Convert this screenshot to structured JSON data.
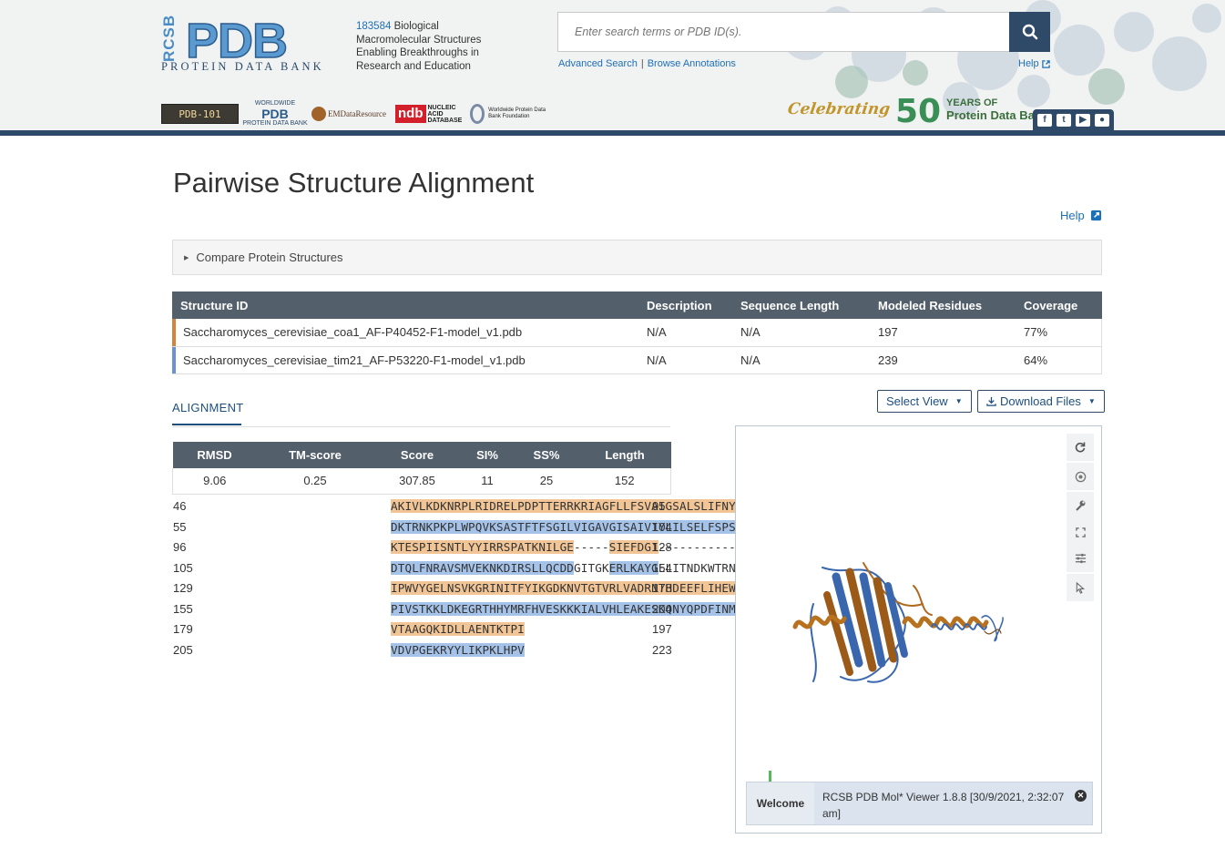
{
  "header": {
    "logo_side": "RCSB",
    "logo_main": "PDB",
    "logo_sub": "PROTEIN DATA BANK",
    "entry_count": "183584",
    "tagline": "Biological Macromolecular Structures Enabling Breakthroughs in Research and Education",
    "search_placeholder": "Enter search terms or PDB ID(s).",
    "advanced_search": "Advanced Search",
    "browse_annotations": "Browse Annotations",
    "help": "Help",
    "partners": {
      "pdb101": "PDB-101",
      "wwpdb_top": "WORLDWIDE",
      "wwpdb_main": "PDB",
      "wwpdb_bottom": "PROTEIN DATA BANK",
      "emdr": "EMDataResource",
      "ndb_letters": "ndb",
      "ndb_text": "NUCLEIC ACID DATABASE",
      "wwpdbf": "Worldwide Protein Data Bank Foundation"
    },
    "celebrate": {
      "word": "Celebrating",
      "number": "50",
      "years": "YEARS OF",
      "bank": "Protein Data Bank"
    }
  },
  "page": {
    "title": "Pairwise Structure Alignment",
    "help": "Help",
    "compare_panel": "Compare Protein Structures"
  },
  "structures": {
    "headers": [
      "Structure ID",
      "Description",
      "Sequence Length",
      "Modeled Residues",
      "Coverage"
    ],
    "rows": [
      {
        "id": "Saccharomyces_cerevisiae_coa1_AF-P40452-F1-model_v1.pdb",
        "description": "N/A",
        "sequence_length": "N/A",
        "modeled_residues": "197",
        "coverage": "77%",
        "color": "#d1843f"
      },
      {
        "id": "Saccharomyces_cerevisiae_tim21_AF-P53220-F1-model_v1.pdb",
        "description": "N/A",
        "sequence_length": "N/A",
        "modeled_residues": "239",
        "coverage": "64%",
        "color": "#6b93d1"
      }
    ]
  },
  "alignment": {
    "tab": "ALIGNMENT",
    "stats_headers": [
      "RMSD",
      "TM-score",
      "Score",
      "SI%",
      "SS%",
      "Length"
    ],
    "stats_values": [
      "9.06",
      "0.25",
      "307.85",
      "11",
      "25",
      "152"
    ],
    "rows": [
      {
        "start": "46",
        "end": "95",
        "segments": [
          {
            "t": "AKIVLKDKNRPLRIDRELPDPTTERRKRIAGFLLFSVAIGSALSLIFNYE",
            "c": "or"
          }
        ]
      },
      {
        "start": "55",
        "end": "104",
        "segments": [
          {
            "t": "DKTRNKPKPLWPQVKSASTFTFSGILVIGAVGISAIVIYLILSELFSPSG",
            "c": "bl"
          }
        ]
      },
      {
        "start": "96",
        "end": "128",
        "segments": [
          {
            "t": "KTESPIISNTLYYIRRSPATKNILGE",
            "c": "or"
          },
          {
            "t": "-----",
            "c": ""
          },
          {
            "t": "SIEFDGI",
            "c": "or"
          },
          {
            "t": "------------",
            "c": ""
          }
        ]
      },
      {
        "start": "105",
        "end": "154",
        "segments": [
          {
            "t": "DTQLFNRAVSMVEKNKDIRSLLQCDD",
            "c": "bl"
          },
          {
            "t": "GITGK",
            "c": ""
          },
          {
            "t": "ERLKAYG",
            "c": "bl"
          },
          {
            "t": "ELITNDKWTRNR",
            "c": ""
          }
        ]
      },
      {
        "start": "129",
        "end": "178",
        "segments": [
          {
            "t": "IPWVYGELNSVKGRINITFYIKGDKNVTGTVRLVADRNTHDEEFLIHEWS",
            "c": "or"
          }
        ]
      },
      {
        "start": "155",
        "end": "204",
        "segments": [
          {
            "t": "PIVSTKKLDKEGRTHHYMRFHVESKKKIALVHLEAKESKQNYQPDFINMY",
            "c": "bl"
          }
        ]
      },
      {
        "start": "179",
        "end": "197",
        "segments": [
          {
            "t": "VTAAGQKIDLLAENTKTPI",
            "c": "or"
          }
        ]
      },
      {
        "start": "205",
        "end": "223",
        "segments": [
          {
            "t": "VDVPGEKRYYLIKPKLHPV",
            "c": "bl"
          }
        ]
      }
    ]
  },
  "controls": {
    "select_view": "Select View",
    "download_files": "Download Files"
  },
  "viewer": {
    "welcome_label": "Welcome",
    "welcome_text": "RCSB PDB Mol* Viewer 1.8.8 [30/9/2021, 2:32:07 am]",
    "icons": [
      "reset-icon",
      "screenshot-icon",
      "settings-wrench-icon",
      "expand-icon",
      "controls-icon",
      "select-pointer-icon"
    ]
  }
}
